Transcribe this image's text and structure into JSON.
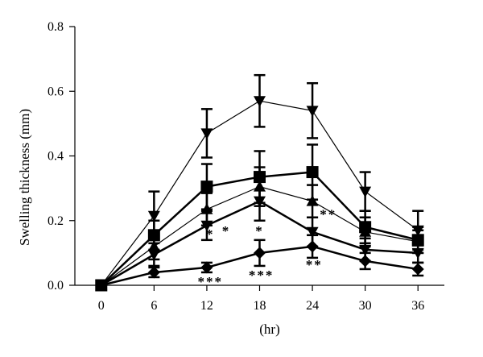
{
  "chart_data": {
    "type": "line",
    "xlabel": "(hr)",
    "ylabel": "Swelling thickness (mm)",
    "x": [
      0,
      6,
      12,
      18,
      24,
      30,
      36
    ],
    "xlim": [
      -3,
      39
    ],
    "ylim": [
      0,
      0.8
    ],
    "x_ticks": [
      0,
      6,
      12,
      18,
      24,
      30,
      36
    ],
    "y_ticks": [
      0.0,
      0.2,
      0.4,
      0.6,
      0.8
    ],
    "y_tick_labels": [
      "0.0",
      "0.2",
      "0.4",
      "0.6",
      "0.8"
    ],
    "grid": false,
    "legend": "none",
    "series": [
      {
        "values": [
          0.0,
          0.215,
          0.47,
          0.57,
          0.54,
          0.29,
          0.17
        ],
        "errors": [
          0.0,
          0.075,
          0.075,
          0.08,
          0.085,
          0.06,
          0.06
        ],
        "marker": "triangle-down",
        "line_width": 1.2
      },
      {
        "values": [
          0.0,
          0.155,
          0.305,
          0.335,
          0.35,
          0.18,
          0.14
        ],
        "errors": [
          0.0,
          0.045,
          0.07,
          0.08,
          0.085,
          0.05,
          0.04
        ],
        "marker": "square",
        "line_width": 2.5
      },
      {
        "values": [
          0.0,
          0.12,
          0.235,
          0.305,
          0.26,
          0.165,
          0.135
        ],
        "errors": [
          0.0,
          0.04,
          0.05,
          0.06,
          0.05,
          0.045,
          0.035
        ],
        "marker": "triangle-up",
        "line_width": 1.2
      },
      {
        "values": [
          0.0,
          0.095,
          0.185,
          0.26,
          0.165,
          0.11,
          0.1
        ],
        "errors": [
          0.0,
          0.035,
          0.045,
          0.06,
          0.045,
          0.035,
          0.03
        ],
        "marker": "triangle-down",
        "line_width": 2.5
      },
      {
        "values": [
          0.0,
          0.04,
          0.055,
          0.1,
          0.12,
          0.075,
          0.05
        ],
        "errors": [
          0.0,
          0.015,
          0.015,
          0.04,
          0.035,
          0.025,
          0.02
        ],
        "marker": "diamond",
        "line_width": 2.5
      }
    ],
    "annotations": [
      {
        "text": "*",
        "x": 12.4,
        "y": 0.145
      },
      {
        "text": "*",
        "x": 14.2,
        "y": 0.155
      },
      {
        "text": "*",
        "x": 18.0,
        "y": 0.155
      },
      {
        "text": "**",
        "x": 25.8,
        "y": 0.205
      },
      {
        "text": "**",
        "x": 24.2,
        "y": 0.05
      },
      {
        "text": "***",
        "x": 12.4,
        "y": -0.002
      },
      {
        "text": "***",
        "x": 18.2,
        "y": 0.018
      }
    ],
    "colors": {
      "line": "#000000",
      "axis": "#000000"
    }
  }
}
